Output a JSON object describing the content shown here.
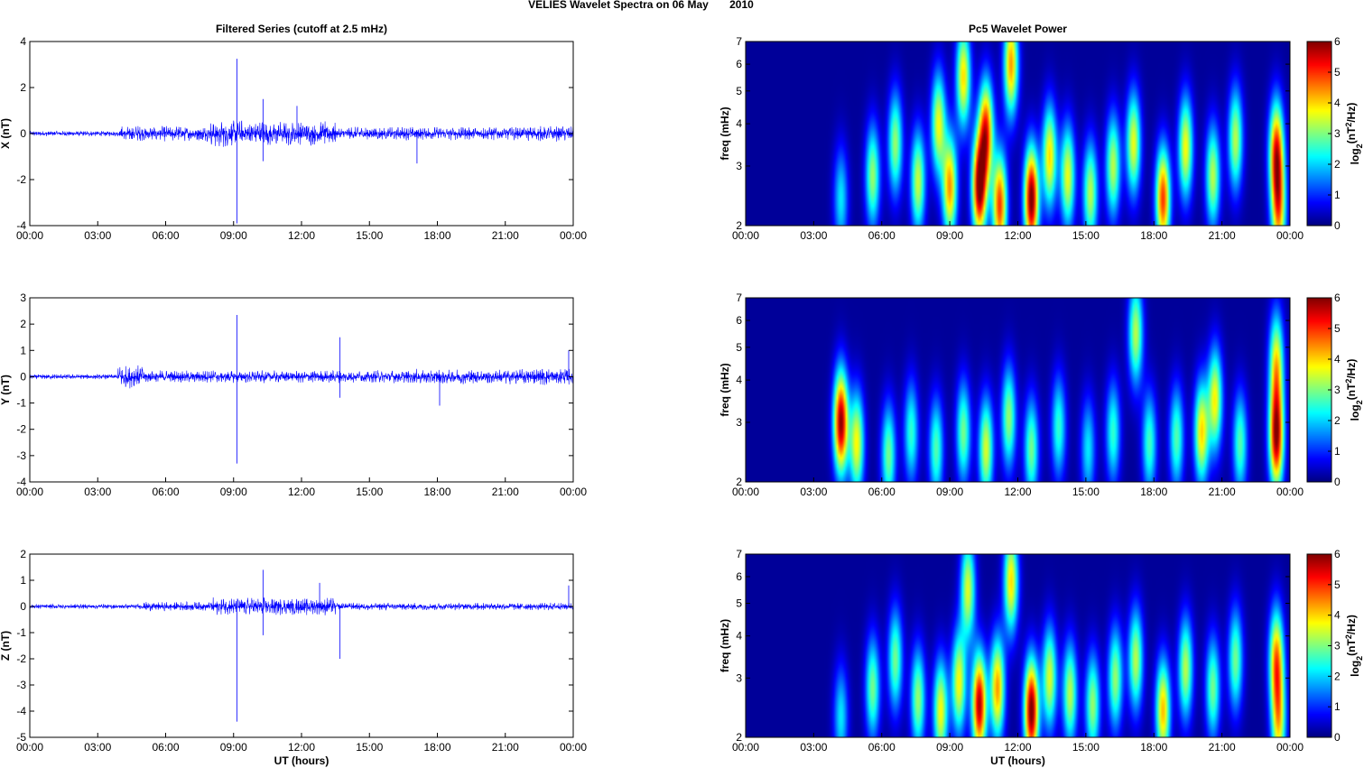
{
  "figure_title": "VELIES Wavelet Spectra on 06 May       2010",
  "colors": {
    "trace": "#0000ff",
    "axes": "#000000",
    "background_spec": "#00008f"
  },
  "chart_data": [
    {
      "type": "line",
      "title": "Filtered Series (cutoff at 2.5 mHz)",
      "xlabel": "",
      "ylabel": "X (nT)",
      "xlim": [
        0,
        24
      ],
      "ylim": [
        -4,
        4
      ],
      "x_ticks": [
        "00:00",
        "03:00",
        "06:00",
        "09:00",
        "12:00",
        "15:00",
        "18:00",
        "21:00",
        "00:00"
      ],
      "y_ticks": [
        "-4",
        "-2",
        "0",
        "2",
        "4"
      ],
      "y_tick_values": [
        -4,
        -2,
        0,
        2,
        4
      ],
      "activity": [
        {
          "t0": 0,
          "t1": 4,
          "amp": 0.12
        },
        {
          "t0": 4,
          "t1": 8,
          "amp": 0.35
        },
        {
          "t0": 8,
          "t1": 11,
          "amp": 0.6
        },
        {
          "t0": 11,
          "t1": 13.5,
          "amp": 0.55
        },
        {
          "t0": 13.5,
          "t1": 22,
          "amp": 0.3
        },
        {
          "t0": 22,
          "t1": 24,
          "amp": 0.35
        }
      ],
      "spikes": [
        {
          "t": 9.15,
          "y": 3.25
        },
        {
          "t": 9.15,
          "y": -3.9
        },
        {
          "t": 10.3,
          "y": 1.5
        },
        {
          "t": 10.3,
          "y": -1.2
        },
        {
          "t": 11.8,
          "y": 1.2
        },
        {
          "t": 17.1,
          "y": -1.3
        }
      ]
    },
    {
      "type": "line",
      "title": "",
      "xlabel": "",
      "ylabel": "Y (nT)",
      "xlim": [
        0,
        24
      ],
      "ylim": [
        -4,
        3
      ],
      "x_ticks": [
        "00:00",
        "03:00",
        "06:00",
        "09:00",
        "12:00",
        "15:00",
        "18:00",
        "21:00",
        "00:00"
      ],
      "y_ticks": [
        "-4",
        "-3",
        "-2",
        "-1",
        "0",
        "1",
        "2",
        "3"
      ],
      "y_tick_values": [
        -4,
        -3,
        -2,
        -1,
        0,
        1,
        2,
        3
      ],
      "activity": [
        {
          "t0": 0,
          "t1": 3.9,
          "amp": 0.1
        },
        {
          "t0": 3.9,
          "t1": 5,
          "amp": 0.45
        },
        {
          "t0": 5,
          "t1": 17,
          "amp": 0.25
        },
        {
          "t0": 17,
          "t1": 22,
          "amp": 0.3
        },
        {
          "t0": 22,
          "t1": 24,
          "amp": 0.35
        }
      ],
      "spikes": [
        {
          "t": 9.15,
          "y": 2.35
        },
        {
          "t": 9.15,
          "y": -3.3
        },
        {
          "t": 13.7,
          "y": 1.5
        },
        {
          "t": 13.7,
          "y": -0.8
        },
        {
          "t": 18.1,
          "y": -1.1
        },
        {
          "t": 23.8,
          "y": 1.0
        }
      ]
    },
    {
      "type": "line",
      "title": "",
      "xlabel": "UT (hours)",
      "ylabel": "Z (nT)",
      "xlim": [
        0,
        24
      ],
      "ylim": [
        -5,
        2
      ],
      "x_ticks": [
        "00:00",
        "03:00",
        "06:00",
        "09:00",
        "12:00",
        "15:00",
        "18:00",
        "21:00",
        "00:00"
      ],
      "y_ticks": [
        "-5",
        "-4",
        "-3",
        "-2",
        "-1",
        "0",
        "1",
        "2"
      ],
      "y_tick_values": [
        -5,
        -4,
        -3,
        -2,
        -1,
        0,
        1,
        2
      ],
      "activity": [
        {
          "t0": 0,
          "t1": 5,
          "amp": 0.1
        },
        {
          "t0": 5,
          "t1": 8,
          "amp": 0.18
        },
        {
          "t0": 8,
          "t1": 13.5,
          "amp": 0.35
        },
        {
          "t0": 13.5,
          "t1": 24,
          "amp": 0.15
        }
      ],
      "spikes": [
        {
          "t": 9.15,
          "y": -4.4
        },
        {
          "t": 10.3,
          "y": 1.4
        },
        {
          "t": 10.3,
          "y": -1.1
        },
        {
          "t": 12.8,
          "y": 0.9
        },
        {
          "t": 13.7,
          "y": -2.0
        },
        {
          "t": 23.8,
          "y": 0.8
        }
      ]
    },
    {
      "type": "heatmap",
      "title": "Pc5 Wavelet Power",
      "xlabel": "",
      "ylabel": "freq (mHz)",
      "colorbar_label": "log2(nT2/Hz)",
      "scale": "log-y",
      "xlim": [
        0,
        24
      ],
      "ylim": [
        2,
        7
      ],
      "clim": [
        0,
        6
      ],
      "x_ticks": [
        "00:00",
        "03:00",
        "06:00",
        "09:00",
        "12:00",
        "15:00",
        "18:00",
        "21:00",
        "00:00"
      ],
      "y_ticks": [
        "2",
        "3",
        "4",
        "5",
        "6",
        "7"
      ],
      "y_tick_values": [
        2,
        3,
        4,
        5,
        6,
        7
      ],
      "colorbar_ticks": [
        "0",
        "1",
        "2",
        "3",
        "4",
        "5",
        "6"
      ],
      "blobs": [
        {
          "t": 4.2,
          "f": 2.4,
          "p": 2.0
        },
        {
          "t": 5.6,
          "f": 2.8,
          "p": 3.0
        },
        {
          "t": 6.6,
          "f": 3.5,
          "p": 3.0
        },
        {
          "t": 7.6,
          "f": 2.7,
          "p": 3.3
        },
        {
          "t": 8.5,
          "f": 4.0,
          "p": 3.5
        },
        {
          "t": 9.0,
          "f": 2.6,
          "p": 4.2
        },
        {
          "t": 9.6,
          "f": 5.5,
          "p": 3.8
        },
        {
          "t": 10.3,
          "f": 2.6,
          "p": 5.8
        },
        {
          "t": 10.6,
          "f": 3.8,
          "p": 4.8
        },
        {
          "t": 11.2,
          "f": 2.3,
          "p": 4.8
        },
        {
          "t": 11.7,
          "f": 6.0,
          "p": 4.2
        },
        {
          "t": 12.6,
          "f": 2.4,
          "p": 6.0
        },
        {
          "t": 13.4,
          "f": 3.2,
          "p": 3.8
        },
        {
          "t": 14.2,
          "f": 2.8,
          "p": 3.5
        },
        {
          "t": 15.2,
          "f": 2.5,
          "p": 3.2
        },
        {
          "t": 16.2,
          "f": 3.0,
          "p": 3.2
        },
        {
          "t": 17.1,
          "f": 3.5,
          "p": 3.5
        },
        {
          "t": 18.4,
          "f": 2.4,
          "p": 4.8
        },
        {
          "t": 19.4,
          "f": 3.4,
          "p": 3.6
        },
        {
          "t": 20.6,
          "f": 2.8,
          "p": 3.2
        },
        {
          "t": 21.6,
          "f": 3.6,
          "p": 3.2
        },
        {
          "t": 23.4,
          "f": 3.3,
          "p": 4.8
        },
        {
          "t": 23.5,
          "f": 2.2,
          "p": 3.8
        }
      ]
    },
    {
      "type": "heatmap",
      "title": "",
      "xlabel": "",
      "ylabel": "freq (mHz)",
      "colorbar_label": "log2(nT2/Hz)",
      "scale": "log-y",
      "xlim": [
        0,
        24
      ],
      "ylim": [
        2,
        7
      ],
      "clim": [
        0,
        6
      ],
      "x_ticks": [
        "00:00",
        "03:00",
        "06:00",
        "09:00",
        "12:00",
        "15:00",
        "18:00",
        "21:00",
        "00:00"
      ],
      "y_ticks": [
        "2",
        "3",
        "4",
        "5",
        "6",
        "7"
      ],
      "y_tick_values": [
        2,
        3,
        4,
        5,
        6,
        7
      ],
      "colorbar_ticks": [
        "0",
        "1",
        "2",
        "3",
        "4",
        "5",
        "6"
      ],
      "blobs": [
        {
          "t": 4.2,
          "f": 3.0,
          "p": 5.8
        },
        {
          "t": 4.9,
          "f": 2.6,
          "p": 3.6
        },
        {
          "t": 6.3,
          "f": 2.4,
          "p": 2.8
        },
        {
          "t": 7.3,
          "f": 2.8,
          "p": 2.4
        },
        {
          "t": 8.4,
          "f": 2.5,
          "p": 2.6
        },
        {
          "t": 9.6,
          "f": 2.8,
          "p": 2.8
        },
        {
          "t": 10.6,
          "f": 2.5,
          "p": 3.4
        },
        {
          "t": 11.6,
          "f": 3.1,
          "p": 3.0
        },
        {
          "t": 12.6,
          "f": 2.5,
          "p": 2.8
        },
        {
          "t": 13.8,
          "f": 2.9,
          "p": 2.4
        },
        {
          "t": 15.1,
          "f": 2.5,
          "p": 2.0
        },
        {
          "t": 16.2,
          "f": 2.8,
          "p": 2.4
        },
        {
          "t": 17.2,
          "f": 5.5,
          "p": 3.2
        },
        {
          "t": 17.8,
          "f": 2.6,
          "p": 2.5
        },
        {
          "t": 19.0,
          "f": 2.7,
          "p": 2.6
        },
        {
          "t": 20.1,
          "f": 2.8,
          "p": 3.8
        },
        {
          "t": 20.7,
          "f": 3.5,
          "p": 3.6
        },
        {
          "t": 21.8,
          "f": 2.6,
          "p": 2.6
        },
        {
          "t": 23.4,
          "f": 2.7,
          "p": 5.6
        },
        {
          "t": 23.4,
          "f": 4.5,
          "p": 3.5
        }
      ]
    },
    {
      "type": "heatmap",
      "title": "",
      "xlabel": "UT (hours)",
      "ylabel": "freq (mHz)",
      "colorbar_label": "log2(nT2/Hz)",
      "scale": "log-y",
      "xlim": [
        0,
        24
      ],
      "ylim": [
        2,
        7
      ],
      "clim": [
        0,
        6
      ],
      "x_ticks": [
        "00:00",
        "03:00",
        "06:00",
        "09:00",
        "12:00",
        "15:00",
        "18:00",
        "21:00",
        "00:00"
      ],
      "y_ticks": [
        "2",
        "3",
        "4",
        "5",
        "6",
        "7"
      ],
      "y_tick_values": [
        2,
        3,
        4,
        5,
        6,
        7
      ],
      "colorbar_ticks": [
        "0",
        "1",
        "2",
        "3",
        "4",
        "5",
        "6"
      ],
      "blobs": [
        {
          "t": 4.2,
          "f": 2.3,
          "p": 2.0
        },
        {
          "t": 5.6,
          "f": 2.8,
          "p": 2.8
        },
        {
          "t": 6.6,
          "f": 3.4,
          "p": 2.8
        },
        {
          "t": 7.6,
          "f": 2.6,
          "p": 3.0
        },
        {
          "t": 8.6,
          "f": 2.4,
          "p": 3.6
        },
        {
          "t": 9.4,
          "f": 2.9,
          "p": 3.6
        },
        {
          "t": 9.8,
          "f": 5.5,
          "p": 3.4
        },
        {
          "t": 10.3,
          "f": 2.5,
          "p": 5.6
        },
        {
          "t": 11.1,
          "f": 2.8,
          "p": 4.2
        },
        {
          "t": 11.7,
          "f": 5.8,
          "p": 3.8
        },
        {
          "t": 12.6,
          "f": 2.4,
          "p": 6.0
        },
        {
          "t": 13.4,
          "f": 3.0,
          "p": 3.4
        },
        {
          "t": 14.3,
          "f": 2.7,
          "p": 3.2
        },
        {
          "t": 15.3,
          "f": 2.5,
          "p": 3.0
        },
        {
          "t": 16.3,
          "f": 3.0,
          "p": 3.0
        },
        {
          "t": 17.2,
          "f": 3.4,
          "p": 3.2
        },
        {
          "t": 18.4,
          "f": 2.4,
          "p": 4.0
        },
        {
          "t": 19.4,
          "f": 3.2,
          "p": 3.2
        },
        {
          "t": 20.6,
          "f": 2.8,
          "p": 2.8
        },
        {
          "t": 21.6,
          "f": 3.4,
          "p": 2.8
        },
        {
          "t": 23.4,
          "f": 3.4,
          "p": 4.2
        },
        {
          "t": 23.5,
          "f": 2.2,
          "p": 3.4
        }
      ]
    }
  ]
}
